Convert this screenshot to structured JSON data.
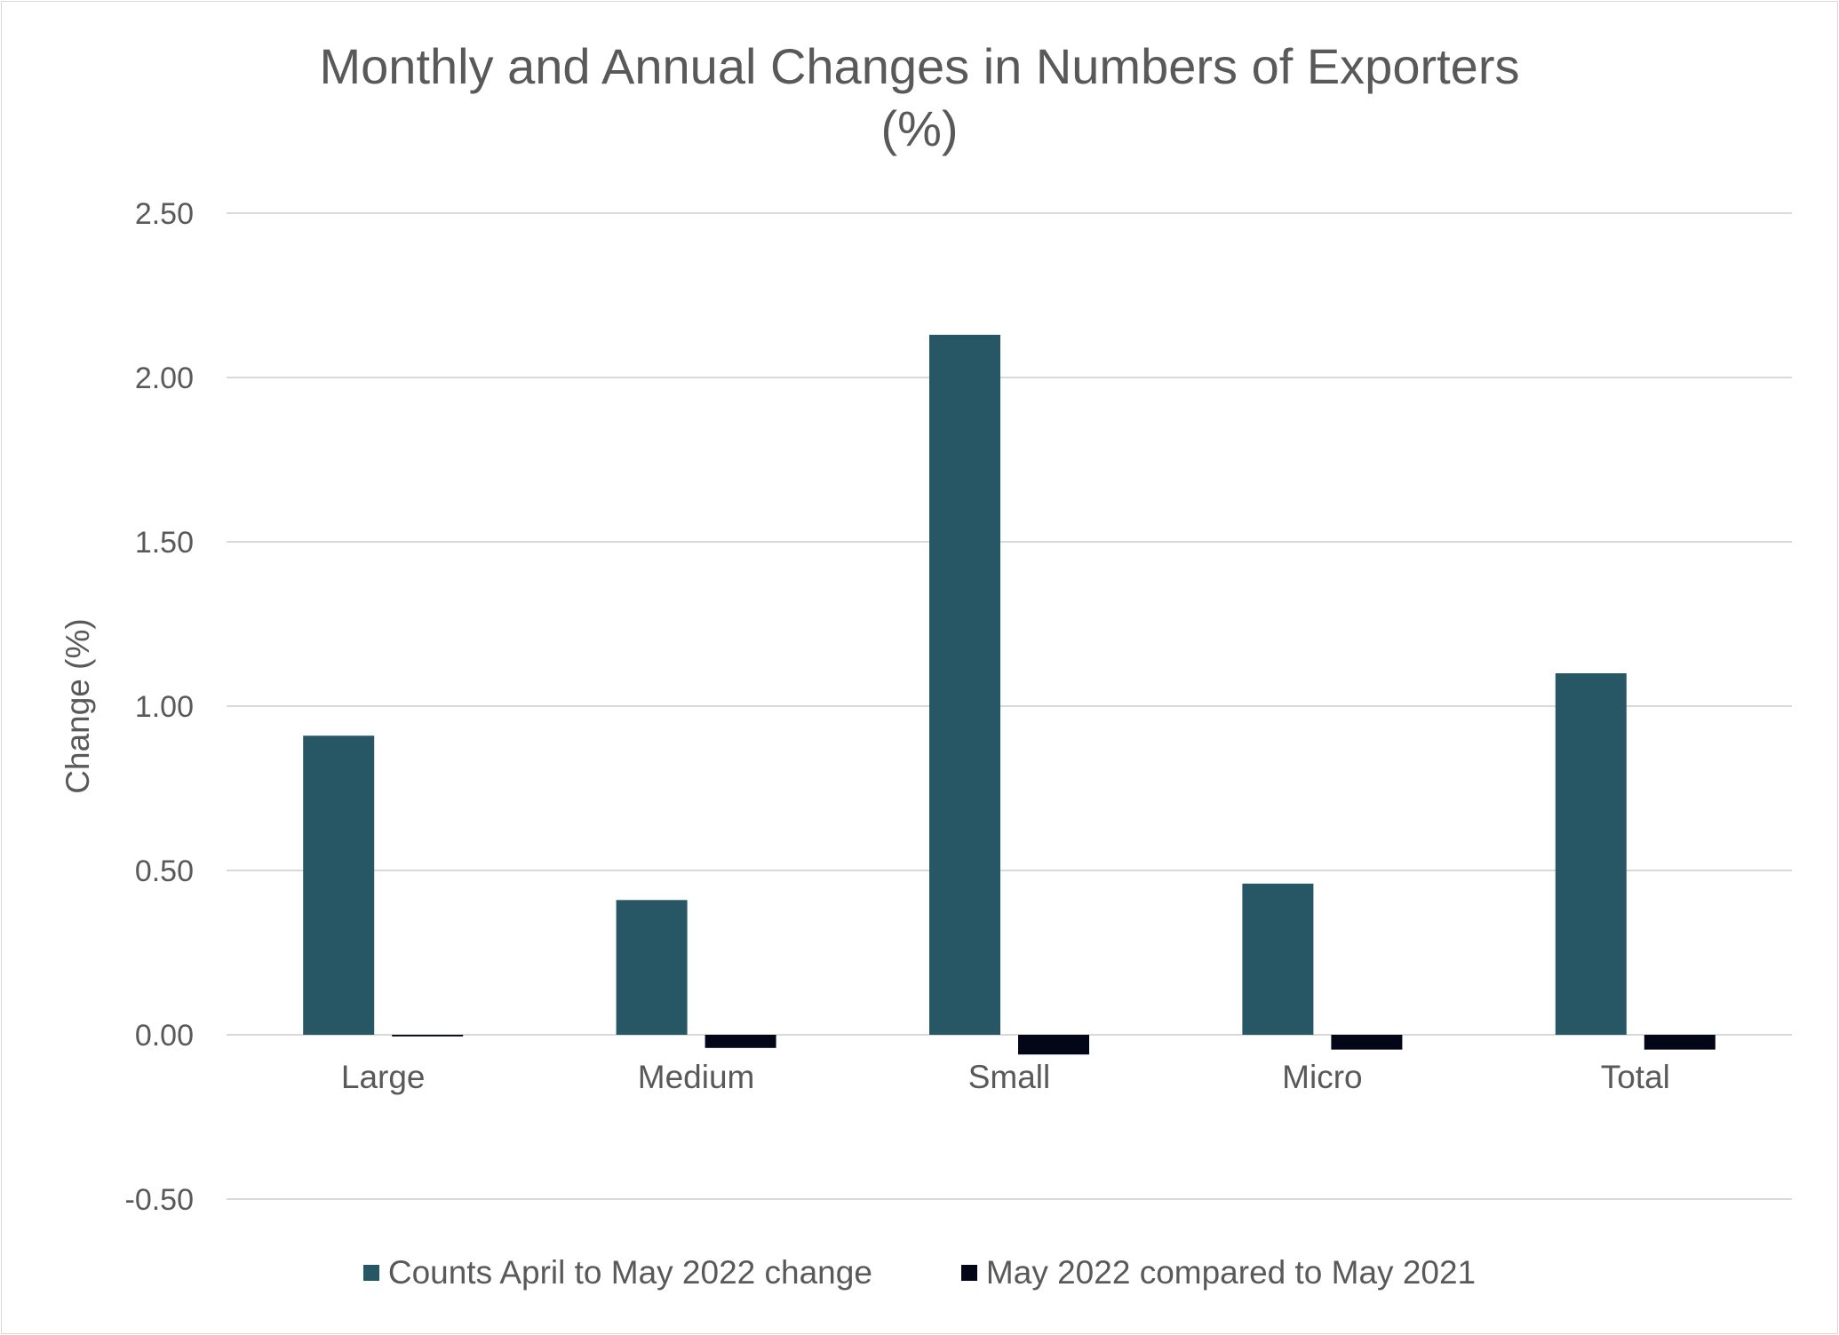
{
  "chart_data": {
    "type": "bar",
    "title_line1": "Monthly and Annual Changes in Numbers of Exporters",
    "title_line2": "(%)",
    "xlabel": "",
    "ylabel": "Change (%)",
    "categories": [
      "Large",
      "Medium",
      "Small",
      "Micro",
      "Total"
    ],
    "series": [
      {
        "name": "Counts April to May 2022 change",
        "color": "#275665",
        "values": [
          0.91,
          0.41,
          2.13,
          0.46,
          1.1
        ]
      },
      {
        "name": "May 2022 compared to May 2021",
        "color": "#030617",
        "values": [
          -0.005,
          -0.04,
          -0.06,
          -0.045,
          -0.045
        ]
      }
    ],
    "ylim": [
      -0.5,
      2.5
    ],
    "yticks": [
      "-0.50",
      "0.00",
      "0.50",
      "1.00",
      "1.50",
      "2.00",
      "2.50"
    ],
    "grid": true,
    "legend": "bottom"
  }
}
